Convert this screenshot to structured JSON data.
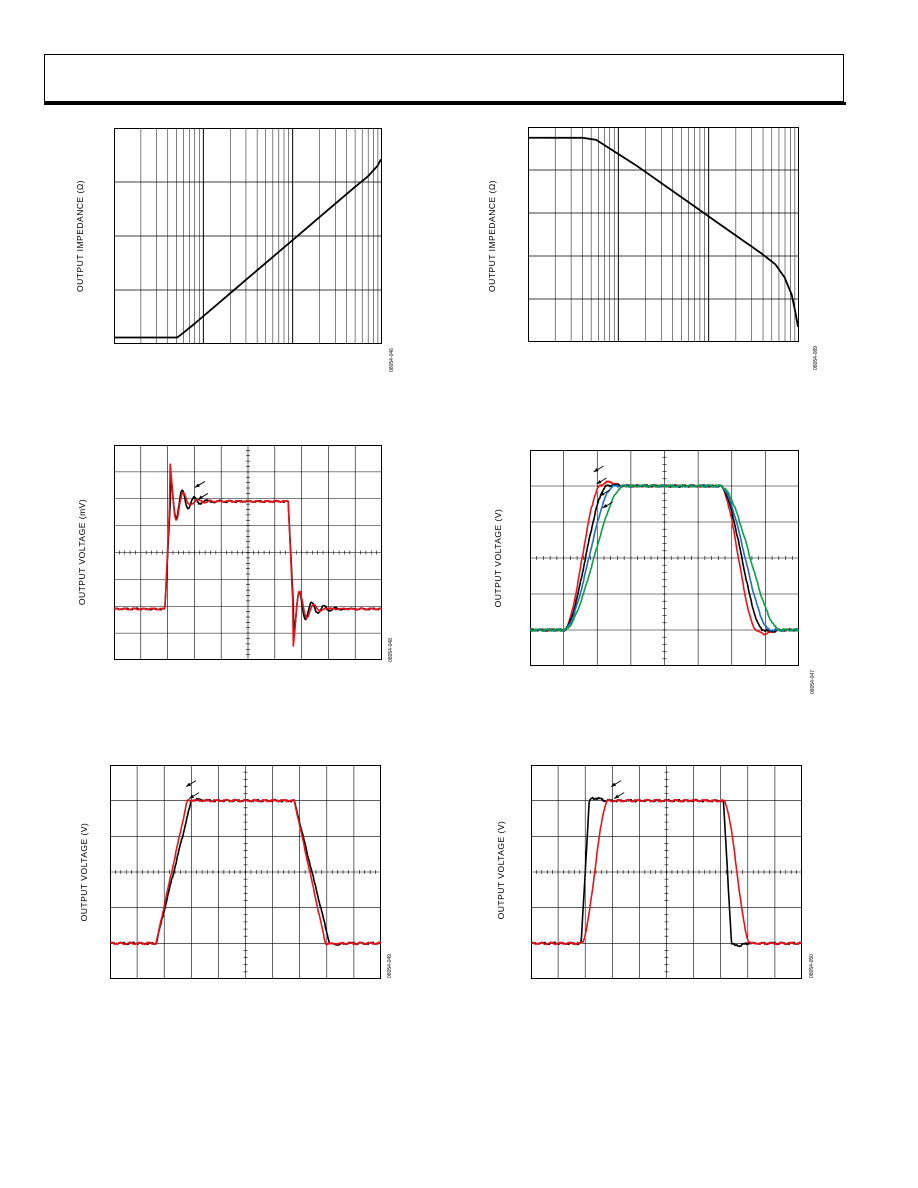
{
  "chart_data": [
    {
      "type": "line",
      "title": "",
      "xlabel": "",
      "ylabel": "OUTPUT IMPEDANCE (Ω)",
      "figure_id": "08054-046",
      "grid": true,
      "x_scale": "log",
      "y_scale": "log",
      "x_decades": 3,
      "y_decades": 4,
      "series": [
        {
          "color": "#000000",
          "points": [
            [
              0,
              0.12
            ],
            [
              0.7,
              0.12
            ],
            [
              0.75,
              0.18
            ],
            [
              0.9,
              0.38
            ],
            [
              1.2,
              0.8
            ],
            [
              1.5,
              1.22
            ],
            [
              1.8,
              1.64
            ],
            [
              2.1,
              2.06
            ],
            [
              2.4,
              2.48
            ],
            [
              2.7,
              2.9
            ],
            [
              2.85,
              3.1
            ],
            [
              2.96,
              3.3
            ],
            [
              3.0,
              3.42
            ]
          ]
        }
      ]
    },
    {
      "type": "line",
      "title": "",
      "xlabel": "",
      "ylabel": "OUTPUT IMPEDANCE (Ω)",
      "figure_id": "08054-089",
      "grid": true,
      "x_scale": "log",
      "y_scale": "log",
      "x_decades": 3,
      "y_decades": 5,
      "series": [
        {
          "color": "#000000",
          "points": [
            [
              0,
              4.75
            ],
            [
              0.6,
              4.75
            ],
            [
              0.75,
              4.7
            ],
            [
              0.9,
              4.5
            ],
            [
              1.2,
              4.1
            ],
            [
              1.5,
              3.66
            ],
            [
              1.8,
              3.22
            ],
            [
              2.1,
              2.78
            ],
            [
              2.4,
              2.34
            ],
            [
              2.6,
              2.05
            ],
            [
              2.75,
              1.8
            ],
            [
              2.85,
              1.5
            ],
            [
              2.93,
              1.1
            ],
            [
              2.97,
              0.7
            ],
            [
              3.0,
              0.35
            ]
          ]
        }
      ]
    },
    {
      "type": "line",
      "title": "",
      "xlabel": "",
      "ylabel": "OUTPUT VOLTAGE (mV)",
      "figure_id": "08054-048",
      "grid": true,
      "x_divisions": 10,
      "y_divisions": 8,
      "series": [
        {
          "color": "#000000",
          "pattern": "step",
          "rise_time": 0.2,
          "overshoot": 1.1,
          "ring_freq": 2.2,
          "ring_decay": 1.1
        },
        {
          "color": "#e8141b",
          "pattern": "step",
          "rise_time": 0.18,
          "overshoot": 1.6,
          "ring_freq": 1.9,
          "ring_decay": 0.75
        }
      ],
      "waveform": {
        "t_rise": 1.9,
        "t_fall": 6.5,
        "y_low": 1.9,
        "y_high": 5.9
      }
    },
    {
      "type": "line",
      "title": "",
      "xlabel": "",
      "ylabel": "OUTPUT VOLTAGE (V)",
      "figure_id": "08054-047",
      "grid": true,
      "x_divisions": 8,
      "y_divisions": 6,
      "series": [
        {
          "color": "#e8141b",
          "pattern": "smooth",
          "rise_time": 1.1,
          "overshoot": 0.18
        },
        {
          "color": "#000000",
          "pattern": "smooth",
          "rise_time": 1.3,
          "overshoot": 0.05
        },
        {
          "color": "#1f6fc4",
          "pattern": "smooth",
          "rise_time": 1.5,
          "overshoot": 0.0
        },
        {
          "color": "#0aa04a",
          "pattern": "smooth",
          "rise_time": 1.8,
          "overshoot": 0.0
        }
      ],
      "waveform": {
        "t_rise": 1.0,
        "t_fall": 5.65,
        "y_low": 1.0,
        "y_high": 5.0
      }
    },
    {
      "type": "line",
      "title": "",
      "xlabel": "",
      "ylabel": "OUTPUT VOLTAGE (V)",
      "figure_id": "08054-049",
      "grid": true,
      "x_divisions": 10,
      "y_divisions": 6,
      "series": [
        {
          "color": "#000000",
          "pattern": "linear",
          "rise_time": 1.3,
          "overshoot": 0.05
        },
        {
          "color": "#e8141b",
          "pattern": "linear",
          "rise_time": 1.15,
          "overshoot": 0.02
        }
      ],
      "waveform": {
        "t_rise": 1.7,
        "t_fall": 6.8,
        "y_low": 1.0,
        "y_high": 5.0
      }
    },
    {
      "type": "line",
      "title": "",
      "xlabel": "",
      "ylabel": "OUTPUT VOLTAGE (V)",
      "figure_id": "08054-050",
      "grid": true,
      "x_divisions": 10,
      "y_divisions": 6,
      "series": [
        {
          "color": "#000000",
          "pattern": "linear",
          "rise_time": 0.3,
          "overshoot": 0.12
        },
        {
          "color": "#e8141b",
          "pattern": "smooth",
          "rise_time": 1.0,
          "overshoot": 0.0
        }
      ],
      "waveform": {
        "t_rise": 1.85,
        "t_fall": 7.1,
        "y_low": 1.0,
        "y_high": 5.0
      }
    }
  ]
}
